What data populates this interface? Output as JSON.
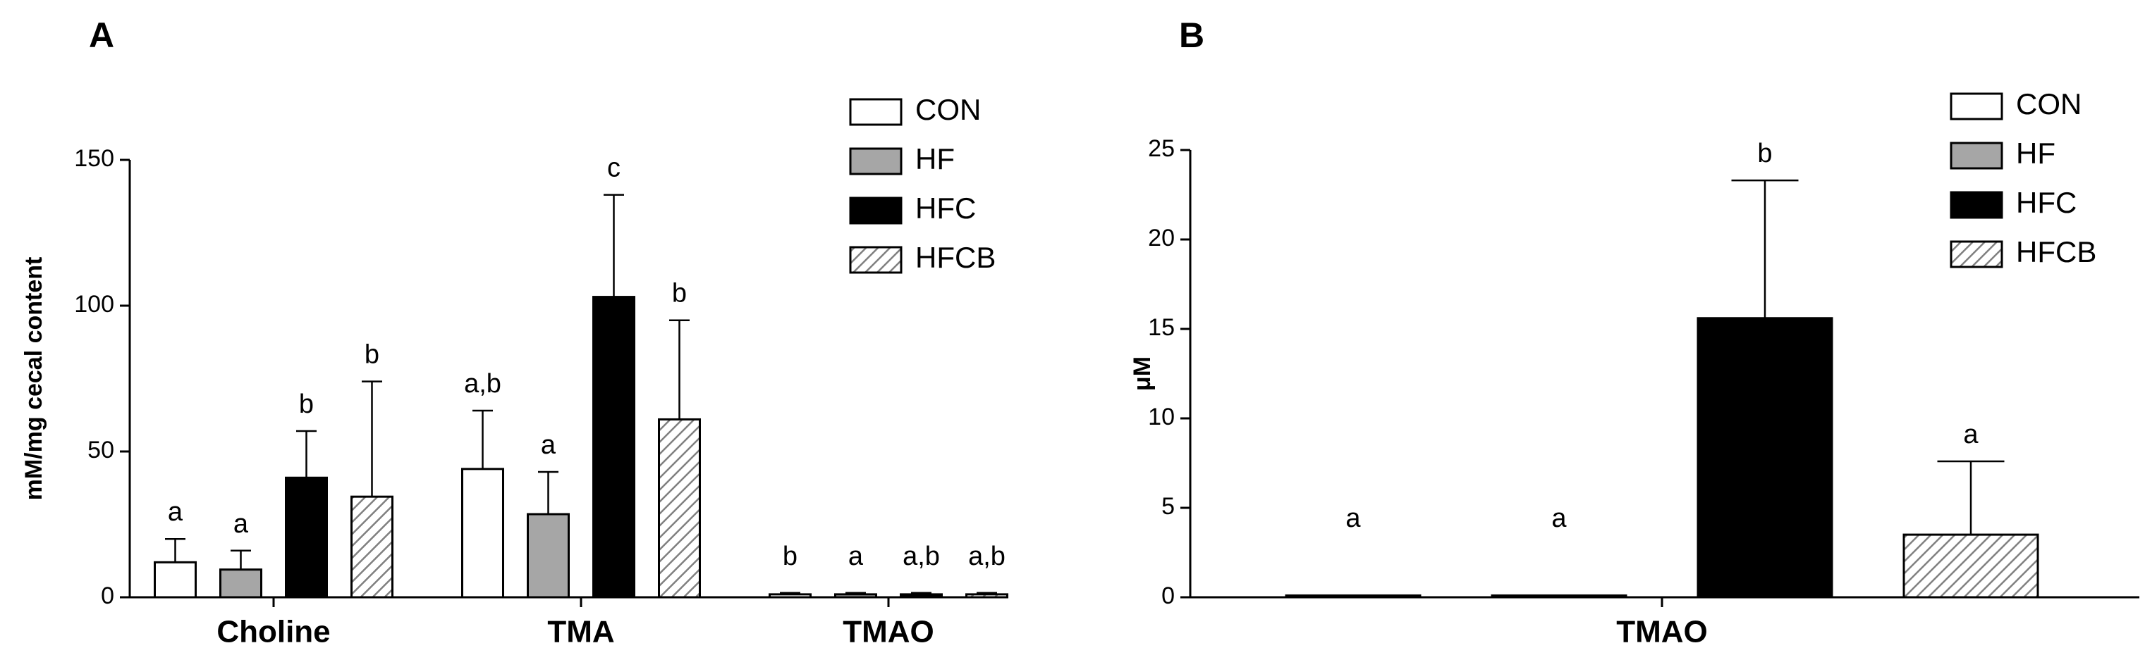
{
  "chart_data": [
    {
      "type": "bar",
      "panel_label": "A",
      "ylabel": "mM/mg cecal content",
      "categories": [
        "Choline",
        "TMA",
        "TMAO"
      ],
      "ylim": [
        0,
        150
      ],
      "yticks": [
        0,
        50,
        100,
        150
      ],
      "legend": "top-right",
      "series": [
        {
          "name": "CON",
          "color": "#ffffff",
          "values": [
            12,
            44,
            1
          ],
          "errors": [
            8,
            20,
            0.5
          ],
          "annotations": [
            "a",
            "a,b",
            "b"
          ]
        },
        {
          "name": "HF",
          "color": "#a6a6a6",
          "values": [
            9.5,
            28.5,
            1
          ],
          "errors": [
            6.5,
            14.5,
            0.5
          ],
          "annotations": [
            "a",
            "a",
            "a"
          ]
        },
        {
          "name": "HFC",
          "color": "#000000",
          "values": [
            41,
            103,
            1
          ],
          "errors": [
            16,
            35,
            0.5
          ],
          "annotations": [
            "b",
            "c",
            "a,b"
          ]
        },
        {
          "name": "HFCB",
          "color": "#808080",
          "pattern": "hatch",
          "values": [
            34.5,
            61,
            1
          ],
          "errors": [
            39.5,
            34,
            0.5
          ],
          "annotations": [
            "b",
            "b",
            "a,b"
          ]
        }
      ]
    },
    {
      "type": "bar",
      "panel_label": "B",
      "ylabel": "μM",
      "categories": [
        "TMAO"
      ],
      "ylim": [
        0,
        25
      ],
      "yticks": [
        0,
        5,
        10,
        15,
        20,
        25
      ],
      "legend": "top-right",
      "series": [
        {
          "name": "CON",
          "color": "#ffffff",
          "values": [
            0.1
          ],
          "errors": [
            0
          ],
          "annotations": [
            "a"
          ]
        },
        {
          "name": "HF",
          "color": "#a6a6a6",
          "values": [
            0.1
          ],
          "errors": [
            0
          ],
          "annotations": [
            "a"
          ]
        },
        {
          "name": "HFC",
          "color": "#000000",
          "values": [
            15.6
          ],
          "errors": [
            7.7
          ],
          "annotations": [
            "b"
          ]
        },
        {
          "name": "HFCB",
          "color": "#808080",
          "pattern": "hatch",
          "values": [
            3.5
          ],
          "errors": [
            4.1
          ],
          "annotations": [
            "a"
          ]
        }
      ]
    }
  ]
}
